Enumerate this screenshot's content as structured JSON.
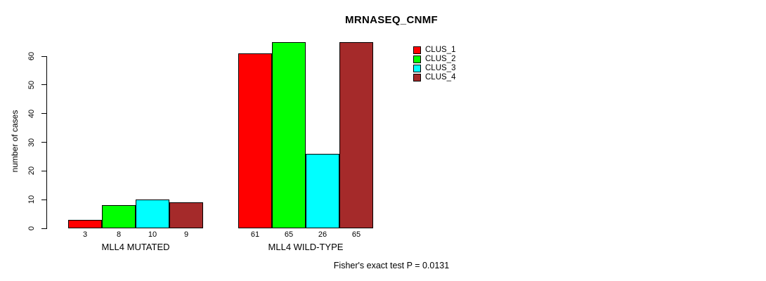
{
  "chart_data": {
    "type": "bar",
    "title": "MRNASEQ_CNMF",
    "ylabel": "number of cases",
    "xlabel": "",
    "ylim": [
      0,
      65
    ],
    "yticks": [
      0,
      10,
      20,
      30,
      40,
      50,
      60
    ],
    "grid": false,
    "legend_position": "top-right",
    "categories": [
      "MLL4 MUTATED",
      "MLL4 WILD-TYPE"
    ],
    "series": [
      {
        "name": "CLUS_1",
        "color": "#FF0000",
        "values": [
          3,
          61
        ]
      },
      {
        "name": "CLUS_2",
        "color": "#00FF00",
        "values": [
          8,
          65
        ]
      },
      {
        "name": "CLUS_3",
        "color": "#00FFFF",
        "values": [
          10,
          26
        ]
      },
      {
        "name": "CLUS_4",
        "color": "#A52A2A",
        "values": [
          9,
          65
        ]
      }
    ],
    "bar_value_labels": [
      [
        3,
        8,
        10,
        9
      ],
      [
        61,
        65,
        26,
        65
      ]
    ],
    "annotation": "Fisher's exact test P = 0.0131"
  }
}
